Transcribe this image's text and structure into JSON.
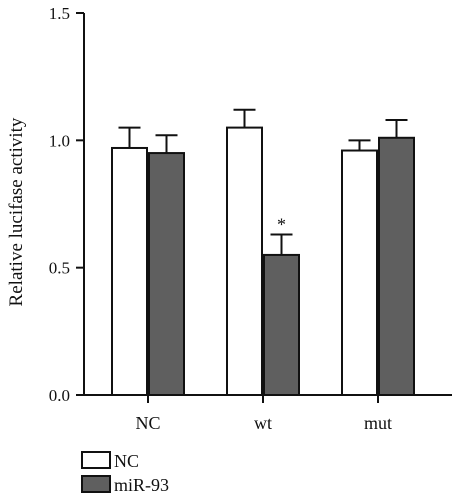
{
  "chart_data": {
    "type": "bar",
    "categories": [
      "NC",
      "wt",
      "mut"
    ],
    "series": [
      {
        "name": "NC",
        "values": [
          0.97,
          1.05,
          0.96
        ],
        "errors": [
          0.08,
          0.07,
          0.04
        ],
        "color": "#ffffff"
      },
      {
        "name": "miR-93",
        "values": [
          0.95,
          0.55,
          1.01
        ],
        "errors": [
          0.07,
          0.08,
          0.07
        ],
        "color": "#5f5f5f"
      }
    ],
    "ylabel": "Relative lucifase activity",
    "xlabel": "",
    "ylim": [
      0,
      1.5
    ],
    "yticks": [
      "0.0",
      "0.5",
      "1.0",
      "1.5"
    ],
    "annotations": [
      {
        "category": "wt",
        "series": "miR-93",
        "text": "*"
      }
    ],
    "legend": {
      "placement": "bottom-left"
    },
    "grid": false
  }
}
